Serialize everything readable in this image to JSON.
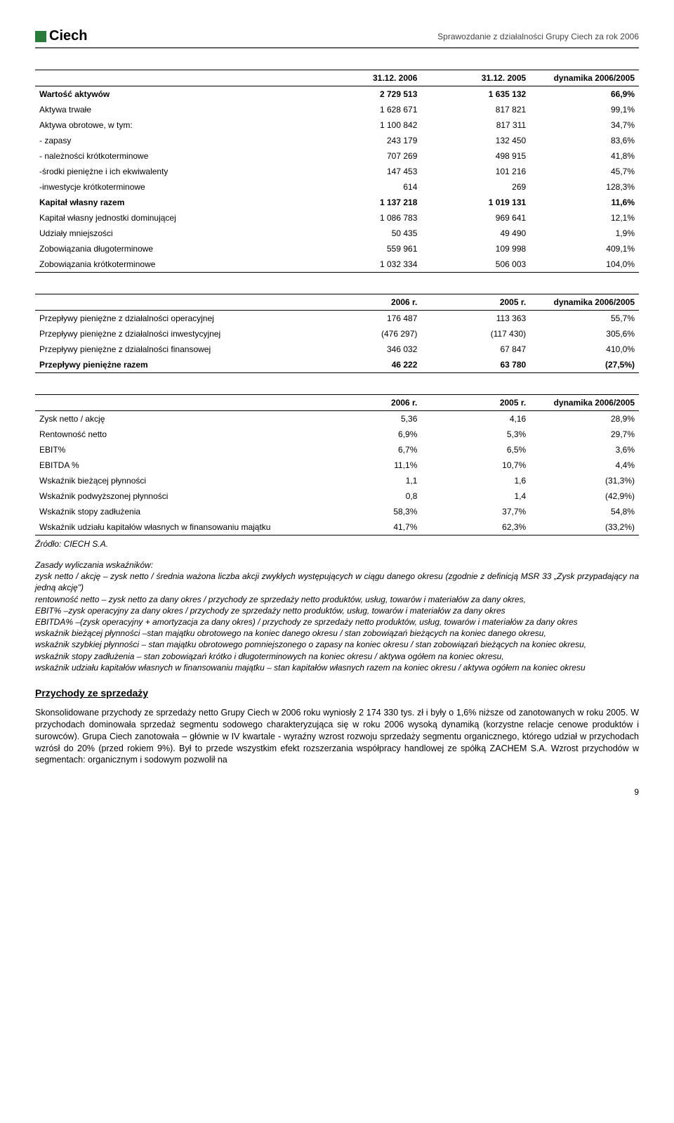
{
  "header": {
    "logo_text": "Ciech",
    "doc_title": "Sprawozdanie z działalności Grupy Ciech za rok 2006"
  },
  "table1": {
    "headers": [
      "",
      "31.12. 2006",
      "31.12. 2005",
      "dynamika 2006/2005"
    ],
    "rows": [
      {
        "label": "Wartość aktywów",
        "c1": "2 729 513",
        "c2": "1 635 132",
        "c3": "66,9%",
        "bold": true
      },
      {
        "label": "Aktywa trwałe",
        "c1": "1 628 671",
        "c2": "817 821",
        "c3": "99,1%"
      },
      {
        "label": "Aktywa obrotowe, w tym:",
        "c1": "1 100 842",
        "c2": "817 311",
        "c3": "34,7%"
      },
      {
        "label": "- zapasy",
        "c1": "243 179",
        "c2": "132 450",
        "c3": "83,6%"
      },
      {
        "label": "- należności krótkoterminowe",
        "c1": "707 269",
        "c2": "498 915",
        "c3": "41,8%"
      },
      {
        "label": "-środki pieniężne i ich ekwiwalenty",
        "c1": "147 453",
        "c2": "101 216",
        "c3": "45,7%"
      },
      {
        "label": "-inwestycje krótkoterminowe",
        "c1": "614",
        "c2": "269",
        "c3": "128,3%"
      },
      {
        "label": "Kapitał własny razem",
        "c1": "1 137 218",
        "c2": "1 019 131",
        "c3": "11,6%",
        "bold": true
      },
      {
        "label": "Kapitał własny jednostki dominującej",
        "c1": "1 086 783",
        "c2": "969 641",
        "c3": "12,1%"
      },
      {
        "label": "Udziały mniejszości",
        "c1": "50 435",
        "c2": "49 490",
        "c3": "1,9%"
      },
      {
        "label": "Zobowiązania długoterminowe",
        "c1": "559 961",
        "c2": "109 998",
        "c3": "409,1%"
      },
      {
        "label": "Zobowiązania krótkoterminowe",
        "c1": "1 032 334",
        "c2": "506 003",
        "c3": "104,0%"
      }
    ]
  },
  "table2": {
    "headers": [
      "",
      "2006 r.",
      "2005 r.",
      "dynamika 2006/2005"
    ],
    "rows": [
      {
        "label": "Przepływy pieniężne z działalności operacyjnej",
        "c1": "176 487",
        "c2": "113 363",
        "c3": "55,7%"
      },
      {
        "label": "Przepływy pieniężne z działalności inwestycyjnej",
        "c1": "(476 297)",
        "c2": "(117 430)",
        "c3": "305,6%"
      },
      {
        "label": "Przepływy pieniężne z działalności finansowej",
        "c1": "346 032",
        "c2": "67 847",
        "c3": "410,0%"
      },
      {
        "label": "Przepływy pieniężne razem",
        "c1": "46 222",
        "c2": "63 780",
        "c3": "(27,5%)",
        "bold": true
      }
    ]
  },
  "table3": {
    "headers": [
      "",
      "2006 r.",
      "2005 r.",
      "dynamika 2006/2005"
    ],
    "rows": [
      {
        "label": "Zysk netto / akcję",
        "c1": "5,36",
        "c2": "4,16",
        "c3": "28,9%"
      },
      {
        "label": "Rentowność netto",
        "c1": "6,9%",
        "c2": "5,3%",
        "c3": "29,7%"
      },
      {
        "label": "EBIT%",
        "c1": "6,7%",
        "c2": "6,5%",
        "c3": "3,6%"
      },
      {
        "label": "EBITDA %",
        "c1": "11,1%",
        "c2": "10,7%",
        "c3": "4,4%"
      },
      {
        "label": "Wskaźnik bieżącej płynności",
        "c1": "1,1",
        "c2": "1,6",
        "c3": "(31,3%)"
      },
      {
        "label": "Wskaźnik podwyższonej płynności",
        "c1": "0,8",
        "c2": "1,4",
        "c3": "(42,9%)"
      },
      {
        "label": "Wskaźnik stopy zadłużenia",
        "c1": "58,3%",
        "c2": "37,7%",
        "c3": "54,8%"
      },
      {
        "label": "Wskaźnik udziału kapitałów własnych w finansowaniu majątku",
        "c1": "41,7%",
        "c2": "62,3%",
        "c3": "(33,2%)"
      }
    ]
  },
  "source_note": "Źródło: CIECH S.A.",
  "definitions": {
    "title": "Zasady wyliczania wskaźników:",
    "body": "zysk netto / akcję – zysk netto / średnia ważona liczba akcji zwykłych występujących w ciągu danego okresu (zgodnie z definicją MSR 33 „Zysk przypadający na jedną akcję\")\nrentowność netto – zysk netto za dany okres / przychody ze sprzedaży netto produktów, usług, towarów i materiałów za dany okres,\nEBIT% –zysk operacyjny za dany okres / przychody ze sprzedaży netto produktów, usług, towarów i materiałów za dany okres\nEBITDA% –(zysk operacyjny + amortyzacja za dany okres) / przychody ze sprzedaży netto produktów, usług, towarów i materiałów za dany okres\nwskaźnik bieżącej płynności –stan majątku obrotowego na koniec danego okresu / stan zobowiązań bieżących na koniec danego okresu,\nwskaźnik szybkiej płynności – stan majątku obrotowego pomniejszonego o zapasy na koniec okresu / stan zobowiązań bieżących na koniec okresu,\nwskaźnik stopy zadłużenia – stan zobowiązań krótko i długoterminowych na koniec okresu / aktywa ogółem na koniec okresu,\nwskaźnik udziału kapitałów własnych w finansowaniu majątku – stan kapitałów własnych razem na koniec okresu / aktywa ogółem na koniec okresu"
  },
  "section": {
    "title": "Przychody ze sprzedaży",
    "body": "Skonsolidowane przychody ze sprzedaży netto Grupy Ciech w 2006 roku wyniosły 2 174 330 tys. zł i były o 1,6% niższe od zanotowanych w roku 2005. W przychodach dominowała sprzedaż segmentu sodowego charakteryzująca się w roku 2006 wysoką dynamiką (korzystne relacje cenowe produktów i surowców). Grupa Ciech zanotowała – głównie w IV kwartale - wyraźny wzrost rozwoju sprzedaży segmentu organicznego, którego udział w przychodach wzrósł do 20% (przed rokiem 9%). Był to przede wszystkim efekt rozszerzania współpracy handlowej ze spółką ZACHEM S.A. Wzrost przychodów w segmentach: organicznym i sodowym pozwolił na"
  },
  "page_number": "9"
}
